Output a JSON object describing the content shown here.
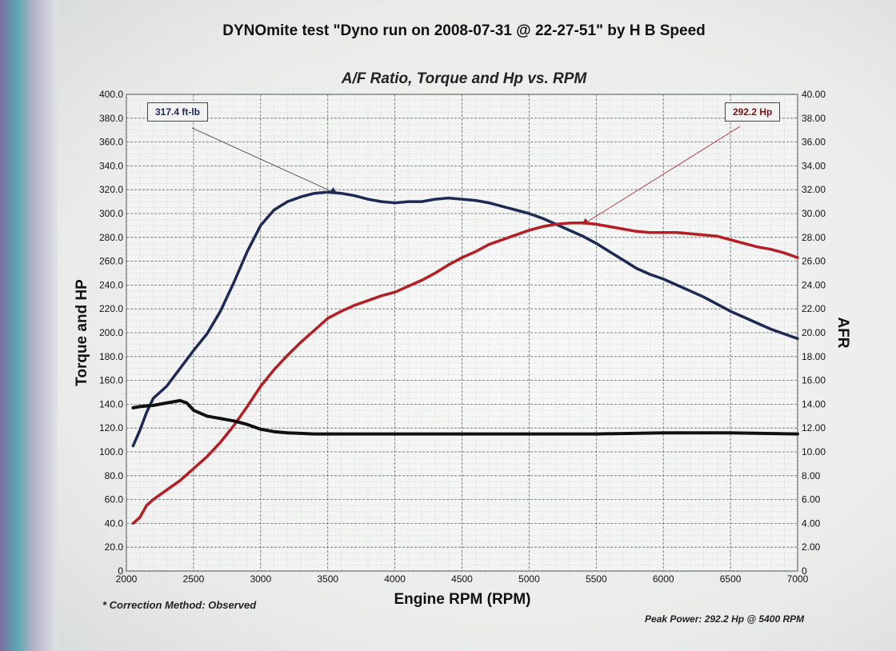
{
  "colors": {
    "torque": "#1c2a55",
    "hp": "#b51e24",
    "afr": "#111111",
    "grid": "#9a9a9a"
  },
  "title": "DYNOmite test \"Dyno run on 2008-07-31 @ 22-27-51\" by H B Speed",
  "subtitle": "A/F Ratio, Torque and Hp vs. RPM",
  "notes": {
    "correction": "* Correction Method: Observed",
    "peak": "Peak Power: 292.2 Hp @ 5400 RPM"
  },
  "callouts": {
    "torque": {
      "label": "317.4 ft-lb",
      "rpm": 3540,
      "value": 318
    },
    "hp": {
      "label": "292.2 Hp",
      "rpm": 5420,
      "value": 292.2
    }
  },
  "chart_data": {
    "type": "line",
    "title": "A/F Ratio, Torque and Hp vs. RPM",
    "xlabel": "Engine RPM (RPM)",
    "ylabel": "Torque and HP",
    "y2label": "AFR",
    "xlim": [
      2000,
      7000
    ],
    "ylim": [
      0,
      400
    ],
    "y2lim": [
      0,
      40
    ],
    "grid": true,
    "x_ticks": [
      "2000",
      "2500",
      "3000",
      "3500",
      "4000",
      "4500",
      "5000",
      "5500",
      "6000",
      "6500",
      "7000"
    ],
    "y_ticks": [
      "0",
      "20.0",
      "40.0",
      "60.0",
      "80.0",
      "100.0",
      "120.0",
      "140.0",
      "160.0",
      "180.0",
      "200.0",
      "220.0",
      "240.0",
      "260.0",
      "280.0",
      "300.0",
      "320.0",
      "340.0",
      "360.0",
      "380.0",
      "400.0"
    ],
    "y2_ticks": [
      "0",
      "2.00",
      "4.00",
      "6.00",
      "8.00",
      "10.00",
      "12.00",
      "14.00",
      "16.00",
      "18.00",
      "20.00",
      "22.00",
      "24.00",
      "26.00",
      "28.00",
      "30.00",
      "32.00",
      "34.00",
      "36.00",
      "38.00",
      "40.00"
    ],
    "series": [
      {
        "key": "torque",
        "axis": "left",
        "x": [
          2050,
          2100,
          2150,
          2200,
          2300,
          2400,
          2500,
          2600,
          2700,
          2800,
          2900,
          3000,
          3100,
          3200,
          3300,
          3400,
          3500,
          3600,
          3700,
          3800,
          3900,
          4000,
          4100,
          4200,
          4300,
          4400,
          4500,
          4600,
          4700,
          4800,
          4900,
          5000,
          5100,
          5200,
          5300,
          5400,
          5500,
          5600,
          5700,
          5800,
          5900,
          6000,
          6100,
          6200,
          6300,
          6400,
          6500,
          6600,
          6700,
          6800,
          6900,
          7000
        ],
        "y": [
          105,
          118,
          133,
          145,
          155,
          170,
          185,
          199,
          218,
          242,
          268,
          290,
          303,
          310,
          314,
          317,
          318,
          317,
          315,
          312,
          310,
          309,
          310,
          310,
          312,
          313,
          312,
          311,
          309,
          306,
          303,
          300,
          296,
          291,
          286,
          281,
          275,
          268,
          261,
          254,
          249,
          245,
          240,
          235,
          230,
          224,
          218,
          213,
          208,
          203,
          199,
          195
        ]
      },
      {
        "key": "hp",
        "axis": "left",
        "x": [
          2050,
          2100,
          2150,
          2200,
          2300,
          2400,
          2500,
          2600,
          2700,
          2800,
          2900,
          3000,
          3100,
          3200,
          3300,
          3400,
          3500,
          3600,
          3700,
          3800,
          3900,
          4000,
          4100,
          4200,
          4300,
          4400,
          4500,
          4600,
          4700,
          4800,
          4900,
          5000,
          5100,
          5200,
          5300,
          5400,
          5500,
          5600,
          5700,
          5800,
          5900,
          6000,
          6100,
          6200,
          6300,
          6400,
          6500,
          6600,
          6700,
          6800,
          6900,
          7000
        ],
        "y": [
          40,
          45,
          55,
          60,
          68,
          76,
          86,
          96,
          108,
          122,
          138,
          155,
          169,
          181,
          192,
          202,
          212,
          218,
          223,
          227,
          231,
          234,
          239,
          244,
          250,
          257,
          263,
          268,
          274,
          278,
          282,
          286,
          289,
          291,
          292,
          292.2,
          291,
          289,
          287,
          285,
          284,
          284,
          284,
          283,
          282,
          281,
          278,
          275,
          272,
          270,
          267,
          263
        ]
      },
      {
        "key": "afr",
        "axis": "right",
        "x": [
          2050,
          2100,
          2200,
          2300,
          2400,
          2450,
          2500,
          2600,
          2700,
          2800,
          2900,
          3000,
          3100,
          3200,
          3400,
          3600,
          3800,
          4000,
          4500,
          5000,
          5500,
          6000,
          6500,
          7000
        ],
        "y": [
          13.7,
          13.8,
          13.9,
          14.1,
          14.3,
          14.1,
          13.5,
          13.0,
          12.8,
          12.6,
          12.3,
          11.9,
          11.7,
          11.6,
          11.5,
          11.5,
          11.5,
          11.5,
          11.5,
          11.5,
          11.5,
          11.6,
          11.6,
          11.5
        ]
      }
    ]
  }
}
